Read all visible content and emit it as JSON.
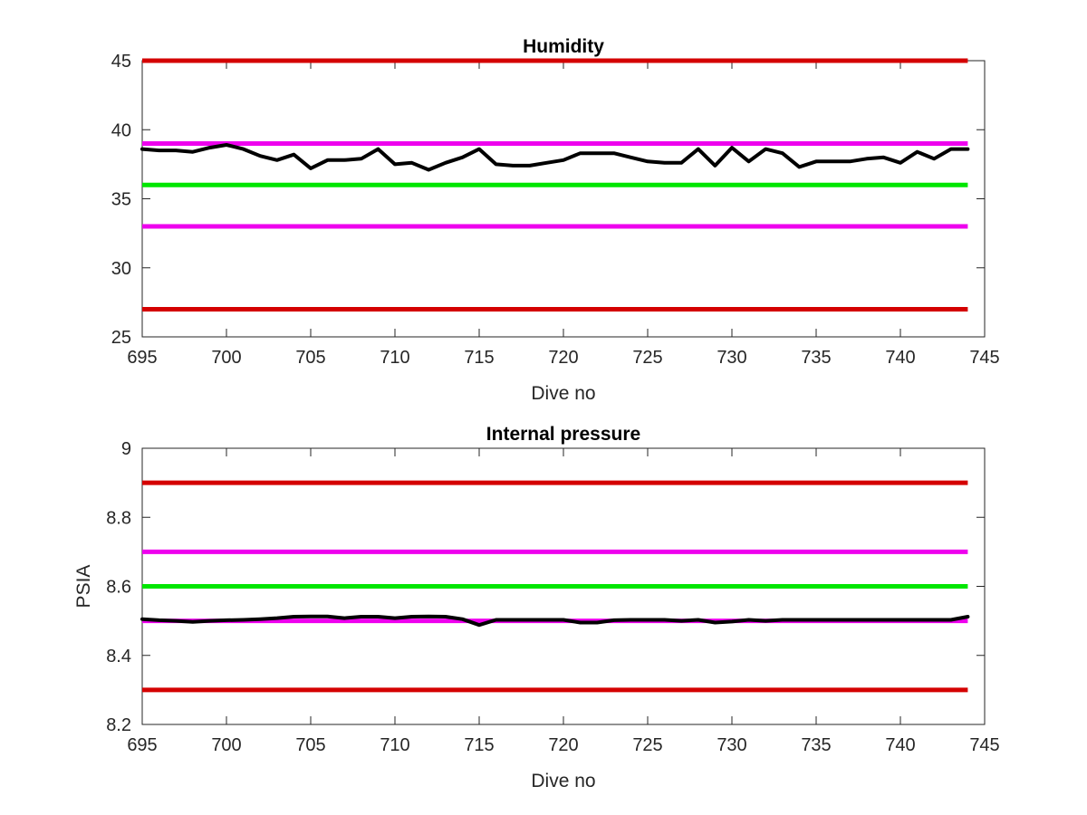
{
  "chart_data": [
    {
      "type": "line",
      "title": "Humidity",
      "xlabel": "Dive no",
      "ylabel": "",
      "xlim": [
        695,
        745
      ],
      "ylim": [
        25,
        45
      ],
      "xticks": [
        "695",
        "700",
        "705",
        "710",
        "715",
        "720",
        "725",
        "730",
        "735",
        "740",
        "745"
      ],
      "yticks": [
        "25",
        "30",
        "35",
        "40",
        "45"
      ],
      "grid": false,
      "reference_lines": [
        {
          "y": 45,
          "color": "#d40000"
        },
        {
          "y": 39,
          "color": "#ee00ee"
        },
        {
          "y": 36,
          "color": "#00e600"
        },
        {
          "y": 33,
          "color": "#ee00ee"
        },
        {
          "y": 27,
          "color": "#d40000"
        }
      ],
      "series": [
        {
          "color": "#000000",
          "x": [
            695,
            696,
            697,
            698,
            699,
            700,
            701,
            702,
            703,
            704,
            705,
            706,
            707,
            708,
            709,
            710,
            711,
            712,
            713,
            714,
            715,
            716,
            717,
            718,
            719,
            720,
            721,
            722,
            723,
            724,
            725,
            726,
            727,
            728,
            729,
            730,
            731,
            732,
            733,
            734,
            735,
            736,
            737,
            738,
            739,
            740,
            741,
            742,
            743,
            744
          ],
          "values": [
            38.6,
            38.5,
            38.5,
            38.4,
            38.7,
            38.9,
            38.6,
            38.1,
            37.8,
            38.2,
            37.2,
            37.8,
            37.8,
            37.9,
            38.6,
            37.5,
            37.6,
            37.1,
            37.6,
            38.0,
            38.6,
            37.5,
            37.4,
            37.4,
            37.6,
            37.8,
            38.3,
            38.3,
            38.3,
            38.0,
            37.7,
            37.6,
            37.6,
            38.6,
            37.4,
            38.7,
            37.7,
            38.6,
            38.3,
            37.3,
            37.7,
            37.7,
            37.7,
            37.9,
            38.0,
            37.6,
            38.4,
            37.9,
            38.6,
            38.6
          ]
        }
      ]
    },
    {
      "type": "line",
      "title": "Internal pressure",
      "xlabel": "Dive no",
      "ylabel": "PSIA",
      "xlim": [
        695,
        745
      ],
      "ylim": [
        8.2,
        9
      ],
      "xticks": [
        "695",
        "700",
        "705",
        "710",
        "715",
        "720",
        "725",
        "730",
        "735",
        "740",
        "745"
      ],
      "yticks": [
        "8.2",
        "8.4",
        "8.6",
        "8.8",
        "9"
      ],
      "grid": false,
      "reference_lines": [
        {
          "y": 8.9,
          "color": "#d40000"
        },
        {
          "y": 8.7,
          "color": "#ee00ee"
        },
        {
          "y": 8.6,
          "color": "#00e600"
        },
        {
          "y": 8.5,
          "color": "#ee00ee"
        },
        {
          "y": 8.3,
          "color": "#d40000"
        }
      ],
      "series": [
        {
          "color": "#000000",
          "x": [
            695,
            696,
            697,
            698,
            699,
            700,
            701,
            702,
            703,
            704,
            705,
            706,
            707,
            708,
            709,
            710,
            711,
            712,
            713,
            714,
            715,
            716,
            717,
            718,
            719,
            720,
            721,
            722,
            723,
            724,
            725,
            726,
            727,
            728,
            729,
            730,
            731,
            732,
            733,
            734,
            735,
            736,
            737,
            738,
            739,
            740,
            741,
            742,
            743,
            744
          ],
          "values": [
            8.505,
            8.502,
            8.5,
            8.497,
            8.5,
            8.502,
            8.503,
            8.505,
            8.508,
            8.512,
            8.513,
            8.513,
            8.508,
            8.512,
            8.512,
            8.508,
            8.512,
            8.513,
            8.512,
            8.505,
            8.488,
            8.503,
            8.503,
            8.503,
            8.503,
            8.503,
            8.495,
            8.495,
            8.502,
            8.503,
            8.503,
            8.503,
            8.5,
            8.503,
            8.495,
            8.498,
            8.503,
            8.5,
            8.503,
            8.503,
            8.503,
            8.503,
            8.503,
            8.503,
            8.503,
            8.503,
            8.503,
            8.503,
            8.503,
            8.512
          ]
        }
      ]
    }
  ]
}
